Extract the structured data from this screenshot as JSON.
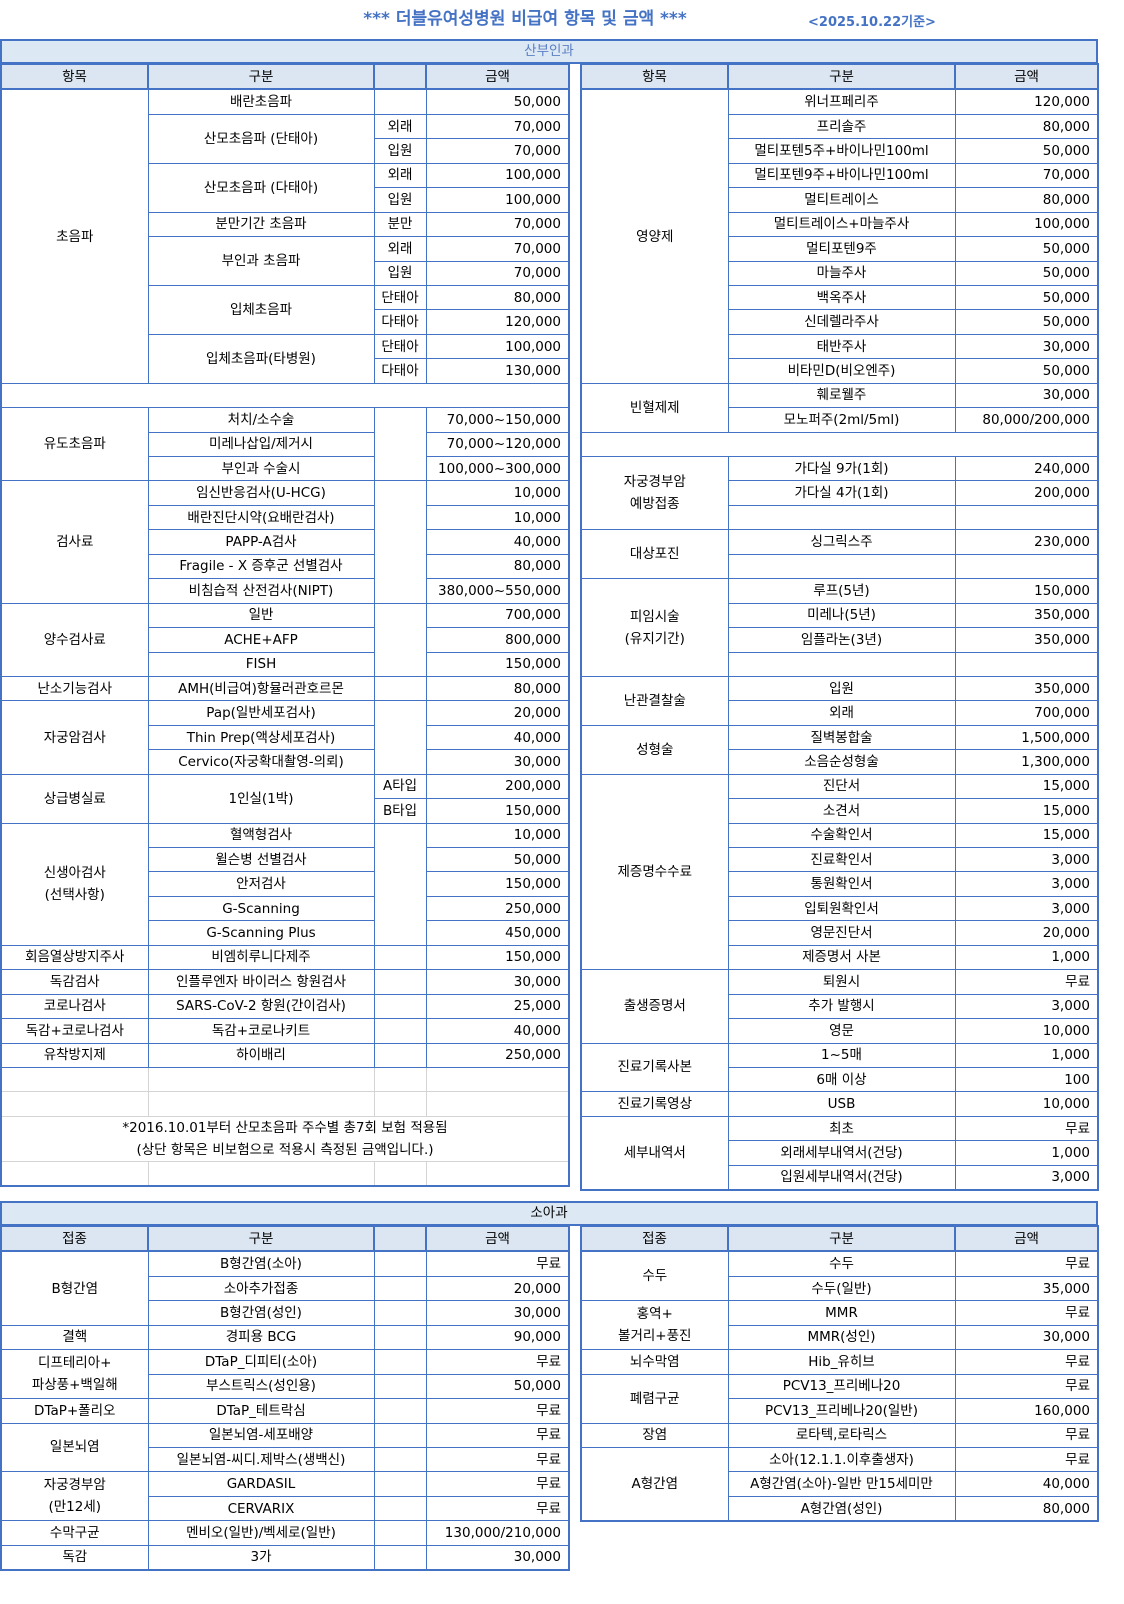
{
  "header": {
    "title": "*** 더블유여성병원 비급여 항목 및 금액 ***",
    "date": "<2025.10.22기준>"
  },
  "obgyn": {
    "title": "산부인과",
    "headers_left": [
      "항목",
      "구분",
      "",
      "금액"
    ],
    "headers_right": [
      "항목",
      "구분",
      "금액"
    ],
    "left": [
      {
        "name": "초음파",
        "items": [
          {
            "name": "배란초음파",
            "price": "50,000"
          },
          {
            "name": "산모초음파 (단태아)",
            "options": [
              {
                "type": "외래",
                "price": "70,000"
              },
              {
                "type": "입원",
                "price": "70,000"
              }
            ]
          },
          {
            "name": "산모초음파 (다태아)",
            "options": [
              {
                "type": "외래",
                "price": "100,000"
              },
              {
                "type": "입원",
                "price": "100,000"
              }
            ]
          },
          {
            "name": "분만기간 초음파",
            "options": [
              {
                "type": "분만",
                "price": "70,000"
              }
            ]
          },
          {
            "name": "부인과 초음파",
            "options": [
              {
                "type": "외래",
                "price": "70,000"
              },
              {
                "type": "입원",
                "price": "70,000"
              }
            ]
          },
          {
            "name": "입체초음파",
            "options": [
              {
                "type": "단태아",
                "price": "80,000"
              },
              {
                "type": "다태아",
                "price": "120,000"
              }
            ]
          },
          {
            "name": "입체초음파(타병원)",
            "options": [
              {
                "type": "단태아",
                "price": "100,000"
              },
              {
                "type": "다태아",
                "price": "130,000"
              }
            ]
          }
        ]
      },
      {
        "blank": true
      },
      {
        "name": "유도초음파",
        "items": [
          {
            "name": "처치/소수술",
            "price": "70,000~150,000"
          },
          {
            "name": "미레나삽입/제거시",
            "price": "70,000~120,000"
          },
          {
            "name": "부인과 수술시",
            "price": "100,000~300,000"
          }
        ]
      },
      {
        "name": "검사료",
        "items": [
          {
            "name": "임신반응검사(U-HCG)",
            "price": "10,000"
          },
          {
            "name": "배란진단시약(요배란검사)",
            "price": "10,000"
          },
          {
            "name": "PAPP-A검사",
            "price": "40,000"
          },
          {
            "name": "Fragile - X 증후군 선별검사",
            "price": "80,000"
          },
          {
            "name": "비침습적 산전검사(NIPT)",
            "price": "380,000~550,000"
          }
        ]
      },
      {
        "name": "양수검사료",
        "items": [
          {
            "name": "일반",
            "price": "700,000"
          },
          {
            "name": "ACHE+AFP",
            "price": "800,000"
          },
          {
            "name": "FISH",
            "price": "150,000"
          }
        ]
      },
      {
        "name": "난소기능검사",
        "items": [
          {
            "name": "AMH(비급여)항뮬러관호르몬",
            "price": "80,000"
          }
        ]
      },
      {
        "name": "자궁암검사",
        "items": [
          {
            "name": "Pap(일반세포검사)",
            "price": "20,000"
          },
          {
            "name": "Thin Prep(액상세포검사)",
            "price": "40,000"
          },
          {
            "name": "Cervico(자궁확대촬영-의뢰)",
            "price": "30,000"
          }
        ]
      },
      {
        "name": "상급병실료",
        "items": [
          {
            "name": "1인실(1박)",
            "options": [
              {
                "type": "A타입",
                "price": "200,000"
              },
              {
                "type": "B타입",
                "price": "150,000"
              }
            ]
          }
        ]
      },
      {
        "name": "신생아검사\n(선택사항)",
        "items": [
          {
            "name": "혈액형검사",
            "price": "10,000"
          },
          {
            "name": "윌슨병 선별검사",
            "price": "50,000"
          },
          {
            "name": "안저검사",
            "price": "150,000"
          },
          {
            "name": "G-Scanning",
            "price": "250,000"
          },
          {
            "name": "G-Scanning Plus",
            "price": "450,000"
          }
        ]
      },
      {
        "name": "회음열상방지주사",
        "items": [
          {
            "name": "비엠히루니다제주",
            "price": "150,000"
          }
        ]
      },
      {
        "name": "독감검사",
        "items": [
          {
            "name": "인플루엔자 바이러스 항원검사",
            "price": "30,000"
          }
        ]
      },
      {
        "name": "코로나검사",
        "items": [
          {
            "name": "SARS-CoV-2 항원(간이검사)",
            "price": "25,000"
          }
        ]
      },
      {
        "name": "독감+코로나검사",
        "items": [
          {
            "name": "독감+코로나키트",
            "price": "40,000"
          }
        ]
      },
      {
        "name": "유착방지제",
        "items": [
          {
            "name": "하이배리",
            "price": "250,000"
          }
        ]
      },
      {
        "blank": true,
        "light": true
      },
      {
        "blank": true,
        "light": true
      },
      {
        "note": [
          "*2016.10.01부터 산모초음파 주수별 총7회 보험 적용됨",
          "(상단 항목은 비보험으로 적용시 측정된 금액입니다.)"
        ]
      },
      {
        "blank": true,
        "light": true
      }
    ],
    "right": [
      {
        "name": "영양제",
        "items": [
          {
            "name": "위너프페리주",
            "price": "120,000"
          },
          {
            "name": "프리솔주",
            "price": "80,000"
          },
          {
            "name": "멀티포텐5주+바이나민100ml",
            "price": "50,000"
          },
          {
            "name": "멀티포텐9주+바이나민100ml",
            "price": "70,000"
          },
          {
            "name": "멀티트레이스",
            "price": "80,000"
          },
          {
            "name": "멀티트레이스+마늘주사",
            "price": "100,000"
          },
          {
            "name": "멀티포텐9주",
            "price": "50,000"
          },
          {
            "name": "마늘주사",
            "price": "50,000"
          },
          {
            "name": "백옥주사",
            "price": "50,000"
          },
          {
            "name": "신데렐라주사",
            "price": "50,000"
          },
          {
            "name": "태반주사",
            "price": "30,000"
          },
          {
            "name": "비타민D(비오엔주)",
            "price": "50,000"
          }
        ]
      },
      {
        "name": "빈혈제제",
        "items": [
          {
            "name": "훼로웰주",
            "price": "30,000"
          },
          {
            "name": "모노퍼주(2ml/5ml)",
            "price": "80,000/200,000"
          }
        ]
      },
      {
        "blank": true
      },
      {
        "name": "자궁경부암\n예방접종",
        "items": [
          {
            "name": "가다실 9가(1회)",
            "price": "240,000"
          },
          {
            "name": "가다실 4가(1회)",
            "price": "200,000"
          },
          {
            "name": "",
            "price": ""
          }
        ]
      },
      {
        "name": "대상포진",
        "items": [
          {
            "name": "싱그릭스주",
            "price": "230,000"
          },
          {
            "name": "",
            "price": ""
          }
        ]
      },
      {
        "name": "피임시술\n(유지기간)",
        "items": [
          {
            "name": "루프(5년)",
            "price": "150,000"
          },
          {
            "name": "미레나(5년)",
            "price": "350,000"
          },
          {
            "name": "임플라논(3년)",
            "price": "350,000"
          },
          {
            "name": "",
            "price": ""
          }
        ]
      },
      {
        "name": "난관결찰술",
        "items": [
          {
            "name": "입원",
            "price": "350,000"
          },
          {
            "name": "외래",
            "price": "700,000"
          }
        ]
      },
      {
        "name": "성형술",
        "items": [
          {
            "name": "질벽봉합술",
            "price": "1,500,000"
          },
          {
            "name": "소음순성형술",
            "price": "1,300,000"
          }
        ]
      },
      {
        "name": "제증명수수료",
        "items": [
          {
            "name": "진단서",
            "price": "15,000"
          },
          {
            "name": "소견서",
            "price": "15,000"
          },
          {
            "name": "수술확인서",
            "price": "15,000"
          },
          {
            "name": "진료확인서",
            "price": "3,000"
          },
          {
            "name": "통원확인서",
            "price": "3,000"
          },
          {
            "name": "입퇴원확인서",
            "price": "3,000"
          },
          {
            "name": "영문진단서",
            "price": "20,000"
          },
          {
            "name": "제증명서 사본",
            "price": "1,000"
          }
        ]
      },
      {
        "name": "출생증명서",
        "items": [
          {
            "name": "퇴원시",
            "price": "무료"
          },
          {
            "name": "추가 발행시",
            "price": "3,000"
          },
          {
            "name": "영문",
            "price": "10,000"
          }
        ]
      },
      {
        "name": "진료기록사본",
        "items": [
          {
            "name": "1~5매",
            "price": "1,000"
          },
          {
            "name": "6매 이상",
            "price": "100"
          }
        ]
      },
      {
        "name": "진료기록영상",
        "items": [
          {
            "name": "USB",
            "price": "10,000"
          }
        ]
      },
      {
        "name": "세부내역서",
        "items": [
          {
            "name": "최초",
            "price": "무료"
          },
          {
            "name": "외래세부내역서(건당)",
            "price": "1,000"
          },
          {
            "name": "입원세부내역서(건당)",
            "price": "3,000"
          }
        ]
      }
    ]
  },
  "pediatrics": {
    "title": "소아과",
    "headers_left": [
      "접종",
      "구분",
      "",
      "금액"
    ],
    "headers_right": [
      "접종",
      "구분",
      "금액"
    ],
    "left": [
      {
        "name": "B형간염",
        "items": [
          {
            "name": "B형간염(소아)",
            "price": "무료"
          },
          {
            "name": "소아추가접종",
            "price": "20,000"
          },
          {
            "name": "B형간염(성인)",
            "price": "30,000"
          }
        ]
      },
      {
        "name": "결핵",
        "items": [
          {
            "name": "경피용 BCG",
            "price": "90,000"
          }
        ]
      },
      {
        "name": "디프테리아+\n파상풍+백일해",
        "items": [
          {
            "name": "DTaP_디피티(소아)",
            "price": "무료"
          },
          {
            "name": "부스트릭스(성인용)",
            "price": "50,000"
          }
        ]
      },
      {
        "name": "DTaP+폴리오",
        "items": [
          {
            "name": "DTaP_테트락심",
            "price": "무료"
          }
        ]
      },
      {
        "name": "일본뇌염",
        "items": [
          {
            "name": "일본뇌염-세포배양",
            "price": "무료"
          },
          {
            "name": "일본뇌염-씨디.제박스(생백신)",
            "price": "무료"
          }
        ]
      },
      {
        "name": "자궁경부암\n(만12세)",
        "items": [
          {
            "name": "GARDASIL",
            "price": "무료"
          },
          {
            "name": "CERVARIX",
            "price": "무료"
          }
        ]
      },
      {
        "name": "수막구균",
        "items": [
          {
            "name": "멘비오(일반)/벡세로(일반)",
            "price": "130,000/210,000"
          }
        ]
      },
      {
        "name": "독감",
        "items": [
          {
            "name": "3가",
            "price": "30,000"
          }
        ]
      }
    ],
    "right": [
      {
        "name": "수두",
        "items": [
          {
            "name": "수두",
            "price": "무료"
          },
          {
            "name": "수두(일반)",
            "price": "35,000"
          }
        ]
      },
      {
        "name": "홍역+\n볼거리+풍진",
        "items": [
          {
            "name": "MMR",
            "price": "무료"
          },
          {
            "name": "MMR(성인)",
            "price": "30,000"
          }
        ]
      },
      {
        "name": "뇌수막염",
        "items": [
          {
            "name": "Hib_유히브",
            "price": "무료"
          }
        ]
      },
      {
        "name": "폐렴구균",
        "items": [
          {
            "name": "PCV13_프리베나20",
            "price": "무료"
          },
          {
            "name": "PCV13_프리베나20(일반)",
            "price": "160,000"
          }
        ]
      },
      {
        "name": "장염",
        "items": [
          {
            "name": "로타텍,로타릭스",
            "price": "무료"
          }
        ]
      },
      {
        "name": "A형간염",
        "items": [
          {
            "name": "소아(12.1.1.이후출생자)",
            "price": "무료"
          },
          {
            "name": "A형간염(소아)-일반 만15세미만",
            "price": "40,000"
          },
          {
            "name": "A형간염(성인)",
            "price": "80,000"
          }
        ]
      }
    ]
  },
  "colors": {
    "accent": "#4472c4",
    "header_bg": "#dce6f2",
    "section_bg": "#dde8f5"
  }
}
